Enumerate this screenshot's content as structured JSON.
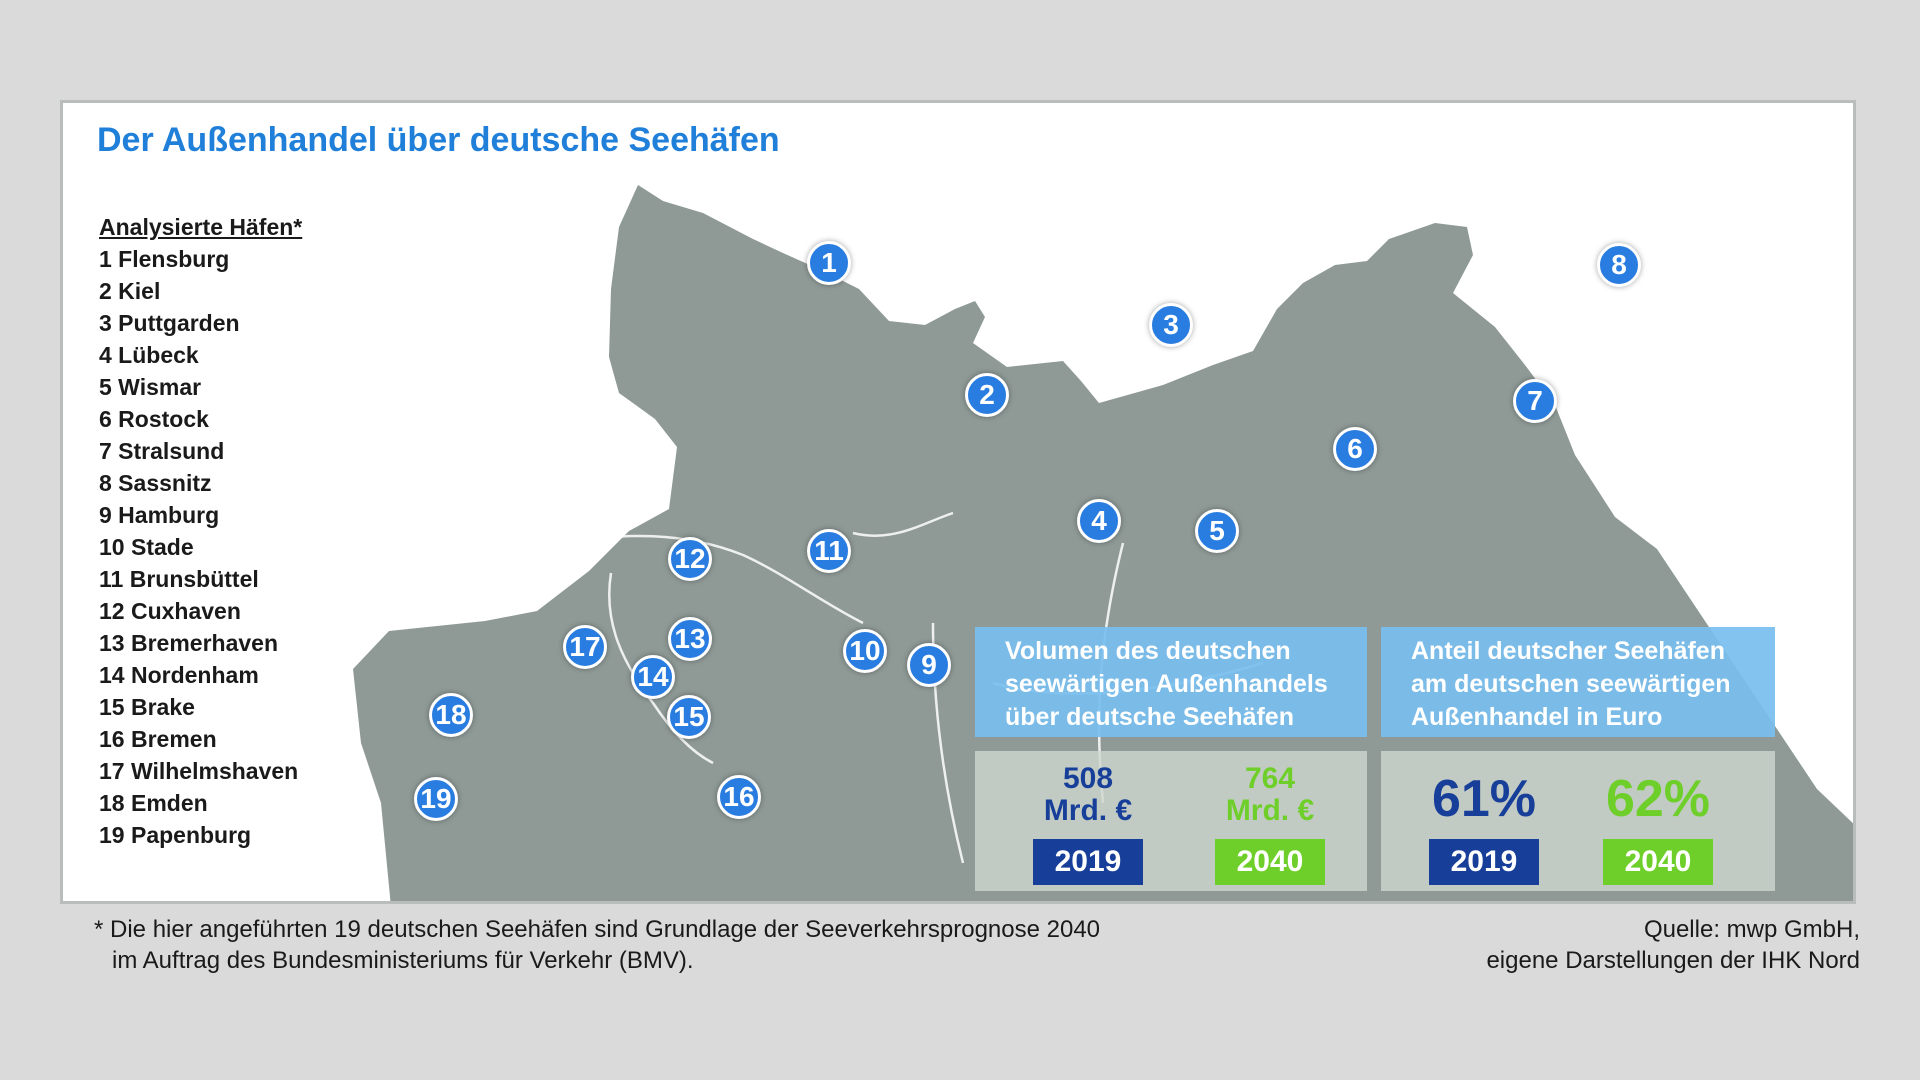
{
  "title": "Der Außenhandel über deutsche Seehäfen",
  "legend": {
    "heading": "Analysierte Häfen*",
    "items": [
      "1 Flensburg",
      "2 Kiel",
      "3 Puttgarden",
      "4 Lübeck",
      "5 Wismar",
      "6 Rostock",
      "7 Stralsund",
      "8 Sassnitz",
      "9 Hamburg",
      "10 Stade",
      "11 Brunsbüttel",
      "12 Cuxhaven",
      "13 Bremerhaven",
      "14 Nordenham",
      "15 Brake",
      "16 Bremen",
      "17 Wilhelmshaven",
      "18 Emden",
      "19 Papenburg"
    ]
  },
  "markers": [
    "1",
    "2",
    "3",
    "4",
    "5",
    "6",
    "7",
    "8",
    "9",
    "10",
    "11",
    "12",
    "13",
    "14",
    "15",
    "16",
    "17",
    "18",
    "19"
  ],
  "colors": {
    "title": "#1f7fd9",
    "land": "#8f9a97",
    "marker": "#2a7de0",
    "dark_blue": "#173f9a",
    "green": "#6fcf2a",
    "box_head": "#78beee"
  },
  "volume_box": {
    "heading_lines": [
      "Volumen des deutschen",
      "seewärtigen Außenhandels",
      "über deutsche Seehäfen"
    ],
    "value_2019_line1": "508",
    "value_2019_line2": "Mrd. €",
    "year_2019": "2019",
    "value_2040_line1": "764",
    "value_2040_line2": "Mrd. €",
    "year_2040": "2040"
  },
  "share_box": {
    "heading_lines": [
      "Anteil deutscher Seehäfen",
      "am deutschen seewärtigen",
      "Außenhandel in Euro"
    ],
    "value_2019": "61%",
    "year_2019": "2019",
    "value_2040": "62%",
    "year_2040": "2040"
  },
  "footnote": {
    "line1": "* Die hier angeführten 19 deutschen Seehäfen sind Grundlage der Seeverkehrsprognose 2040",
    "line2": "im Auftrag des Bundesministeriums für Verkehr (BMV)."
  },
  "source": {
    "line1": "Quelle: mwp GmbH,",
    "line2": "eigene Darstellungen der IHK Nord"
  }
}
